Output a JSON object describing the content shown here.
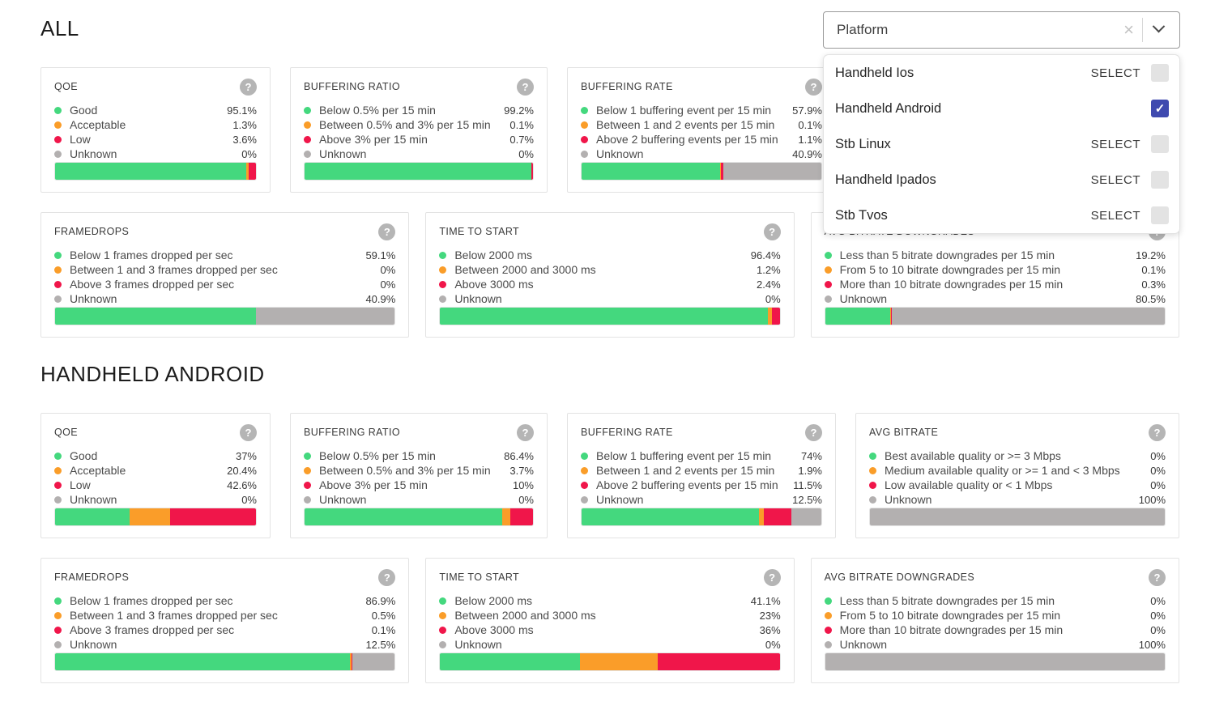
{
  "colors": {
    "good": "#44d87e",
    "acceptable": "#fa9d29",
    "low": "#f0164a",
    "unknown": "#b3b0b0",
    "checkbox_checked": "#3f4aaf",
    "checkbox_unchecked": "#e3e3e3"
  },
  "icons": {
    "help": "?",
    "clear": "×",
    "check": "✓"
  },
  "filter": {
    "label": "Platform",
    "options": [
      {
        "label": "Handheld Ios",
        "action": "SELECT",
        "checked": false
      },
      {
        "label": "Handheld Android",
        "action": "",
        "checked": true
      },
      {
        "label": "Stb Linux",
        "action": "SELECT",
        "checked": false
      },
      {
        "label": "Handheld Ipados",
        "action": "SELECT",
        "checked": false
      },
      {
        "label": "Stb Tvos",
        "action": "SELECT",
        "checked": false
      }
    ]
  },
  "sections": [
    {
      "title": "ALL",
      "rows": [
        [
          {
            "title": "QOE",
            "items": [
              {
                "label": "Good",
                "value": "95.1%",
                "color": "good"
              },
              {
                "label": "Acceptable",
                "value": "1.3%",
                "color": "acceptable"
              },
              {
                "label": "Low",
                "value": "3.6%",
                "color": "low"
              },
              {
                "label": "Unknown",
                "value": "0%",
                "color": "unknown"
              }
            ]
          },
          {
            "title": "BUFFERING RATIO",
            "items": [
              {
                "label": "Below 0.5% per 15 min",
                "value": "99.2%",
                "color": "good"
              },
              {
                "label": "Between 0.5% and 3% per 15 min",
                "value": "0.1%",
                "color": "acceptable"
              },
              {
                "label": "Above 3% per 15 min",
                "value": "0.7%",
                "color": "low"
              },
              {
                "label": "Unknown",
                "value": "0%",
                "color": "unknown"
              }
            ]
          },
          {
            "title": "BUFFERING RATE",
            "items": [
              {
                "label": "Below 1 buffering event per 15 min",
                "value": "57.9%",
                "color": "good"
              },
              {
                "label": "Between 1 and 2 events per 15 min",
                "value": "0.1%",
                "color": "acceptable"
              },
              {
                "label": "Above 2 buffering events per 15 min",
                "value": "1.1%",
                "color": "low"
              },
              {
                "label": "Unknown",
                "value": "40.9%",
                "color": "unknown"
              }
            ]
          }
        ],
        [
          {
            "title": "FRAMEDROPS",
            "items": [
              {
                "label": "Below 1 frames dropped per sec",
                "value": "59.1%",
                "color": "good"
              },
              {
                "label": "Between 1 and 3 frames dropped per sec",
                "value": "0%",
                "color": "acceptable"
              },
              {
                "label": "Above 3 frames dropped per sec",
                "value": "0%",
                "color": "low"
              },
              {
                "label": "Unknown",
                "value": "40.9%",
                "color": "unknown"
              }
            ]
          },
          {
            "title": "TIME TO START",
            "items": [
              {
                "label": "Below 2000 ms",
                "value": "96.4%",
                "color": "good"
              },
              {
                "label": "Between 2000 and 3000 ms",
                "value": "1.2%",
                "color": "acceptable"
              },
              {
                "label": "Above 3000 ms",
                "value": "2.4%",
                "color": "low"
              },
              {
                "label": "Unknown",
                "value": "0%",
                "color": "unknown"
              }
            ]
          },
          {
            "title": "AVG BITRATE DOWNGRADES",
            "items": [
              {
                "label": "Less than 5 bitrate downgrades per 15 min",
                "value": "19.2%",
                "color": "good"
              },
              {
                "label": "From 5 to 10 bitrate downgrades per 15 min",
                "value": "0.1%",
                "color": "acceptable"
              },
              {
                "label": "More than 10 bitrate downgrades per 15 min",
                "value": "0.3%",
                "color": "low"
              },
              {
                "label": "Unknown",
                "value": "80.5%",
                "color": "unknown"
              }
            ]
          }
        ]
      ]
    },
    {
      "title": "HANDHELD ANDROID",
      "rows": [
        [
          {
            "title": "QOE",
            "items": [
              {
                "label": "Good",
                "value": "37%",
                "color": "good"
              },
              {
                "label": "Acceptable",
                "value": "20.4%",
                "color": "acceptable"
              },
              {
                "label": "Low",
                "value": "42.6%",
                "color": "low"
              },
              {
                "label": "Unknown",
                "value": "0%",
                "color": "unknown"
              }
            ]
          },
          {
            "title": "BUFFERING RATIO",
            "items": [
              {
                "label": "Below 0.5% per 15 min",
                "value": "86.4%",
                "color": "good"
              },
              {
                "label": "Between 0.5% and 3% per 15 min",
                "value": "3.7%",
                "color": "acceptable"
              },
              {
                "label": "Above 3% per 15 min",
                "value": "10%",
                "color": "low"
              },
              {
                "label": "Unknown",
                "value": "0%",
                "color": "unknown"
              }
            ]
          },
          {
            "title": "BUFFERING RATE",
            "items": [
              {
                "label": "Below 1 buffering event per 15 min",
                "value": "74%",
                "color": "good"
              },
              {
                "label": "Between 1 and 2 events per 15 min",
                "value": "1.9%",
                "color": "acceptable"
              },
              {
                "label": "Above 2 buffering events per 15 min",
                "value": "11.5%",
                "color": "low"
              },
              {
                "label": "Unknown",
                "value": "12.5%",
                "color": "unknown"
              }
            ]
          },
          {
            "title": "AVG BITRATE",
            "items": [
              {
                "label": "Best available quality or >= 3 Mbps",
                "value": "0%",
                "color": "good"
              },
              {
                "label": "Medium available quality or >= 1 and < 3 Mbps",
                "value": "0%",
                "color": "acceptable"
              },
              {
                "label": "Low available quality or < 1 Mbps",
                "value": "0%",
                "color": "low"
              },
              {
                "label": "Unknown",
                "value": "100%",
                "color": "unknown"
              }
            ]
          }
        ],
        [
          {
            "title": "FRAMEDROPS",
            "items": [
              {
                "label": "Below 1 frames dropped per sec",
                "value": "86.9%",
                "color": "good"
              },
              {
                "label": "Between 1 and 3 frames dropped per sec",
                "value": "0.5%",
                "color": "acceptable"
              },
              {
                "label": "Above 3 frames dropped per sec",
                "value": "0.1%",
                "color": "low"
              },
              {
                "label": "Unknown",
                "value": "12.5%",
                "color": "unknown"
              }
            ]
          },
          {
            "title": "TIME TO START",
            "items": [
              {
                "label": "Below 2000 ms",
                "value": "41.1%",
                "color": "good"
              },
              {
                "label": "Between 2000 and 3000 ms",
                "value": "23%",
                "color": "acceptable"
              },
              {
                "label": "Above 3000 ms",
                "value": "36%",
                "color": "low"
              },
              {
                "label": "Unknown",
                "value": "0%",
                "color": "unknown"
              }
            ]
          },
          {
            "title": "AVG BITRATE DOWNGRADES",
            "items": [
              {
                "label": "Less than 5 bitrate downgrades per 15 min",
                "value": "0%",
                "color": "good"
              },
              {
                "label": "From 5 to 10 bitrate downgrades per 15 min",
                "value": "0%",
                "color": "acceptable"
              },
              {
                "label": "More than 10 bitrate downgrades per 15 min",
                "value": "0%",
                "color": "low"
              },
              {
                "label": "Unknown",
                "value": "100%",
                "color": "unknown"
              }
            ]
          }
        ]
      ]
    }
  ]
}
